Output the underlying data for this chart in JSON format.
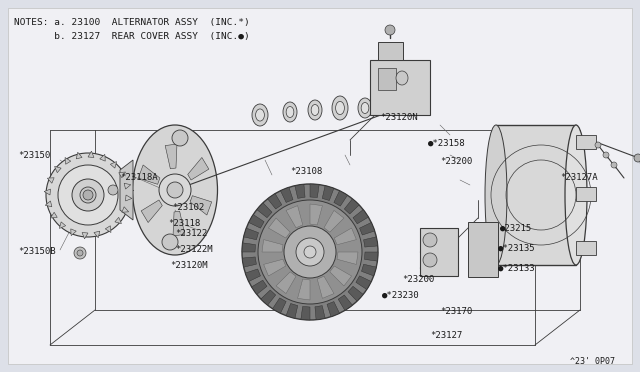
{
  "bg_color": "#dde0e8",
  "line_color": "#3a3a3a",
  "text_color": "#1a1a1a",
  "notes_line1": "NOTES: a. 23100  ALTERNATOR ASSY  (INC.*)",
  "notes_line2": "       b. 23127  REAR COVER ASSY  (INC.●)",
  "part_number_suffix": "^23' 0P07",
  "figw": 6.4,
  "figh": 3.72,
  "dpi": 100
}
